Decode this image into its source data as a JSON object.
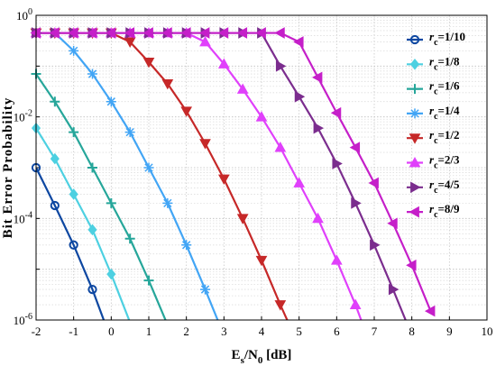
{
  "chart_data": {
    "type": "line",
    "xlabel": "Es/N0 [dB]",
    "xlabel_parts": {
      "base1": "E",
      "sub1": "s",
      "mid": "/N",
      "sub2": "0",
      "unit": " [dB]"
    },
    "ylabel": "Bit Error Probability",
    "xlim": [
      -2,
      10
    ],
    "ylim": [
      1e-06,
      1
    ],
    "yscale": "log",
    "grid": true,
    "legend_position": "right",
    "x_ticks": [
      "-2",
      "-1",
      "0",
      "1",
      "2",
      "3",
      "4",
      "5",
      "6",
      "7",
      "8",
      "9",
      "10"
    ],
    "y_ticks": [
      {
        "base": "10",
        "exp": "0"
      },
      {
        "base": "10",
        "exp": "-2"
      },
      {
        "base": "10",
        "exp": "-4"
      },
      {
        "base": "10",
        "exp": "-6"
      }
    ],
    "series": [
      {
        "name": "r_c=1/10",
        "label_sub": "c",
        "label_rest": "=1/10",
        "color": "#0d47a1",
        "marker": "circle",
        "x": [
          -2,
          -1.5,
          -1,
          -0.5,
          0
        ],
        "y": [
          0.001,
          0.00018,
          3e-05,
          4e-06,
          4e-07
        ]
      },
      {
        "name": "r_c=1/8",
        "label_sub": "c",
        "label_rest": "=1/8",
        "color": "#4dd0e1",
        "marker": "diamond",
        "x": [
          -2,
          -1.5,
          -1,
          -0.5,
          0,
          0.5
        ],
        "y": [
          0.006,
          0.0015,
          0.0003,
          6e-05,
          8e-06,
          9e-07
        ]
      },
      {
        "name": "r_c=1/6",
        "label_sub": "c",
        "label_rest": "=1/6",
        "color": "#26a69a",
        "marker": "plus",
        "x": [
          -2,
          -1.5,
          -1,
          -0.5,
          0,
          0.5,
          1,
          1.5
        ],
        "y": [
          0.07,
          0.02,
          0.005,
          0.001,
          0.0002,
          4e-05,
          6e-06,
          8e-07
        ]
      },
      {
        "name": "r_c=1/4",
        "label_sub": "c",
        "label_rest": "=1/4",
        "color": "#42a5f5",
        "marker": "star",
        "x": [
          -2,
          -1.5,
          -1,
          -0.5,
          0,
          0.5,
          1,
          1.5,
          2,
          2.5,
          3
        ],
        "y": [
          0.45,
          0.45,
          0.2,
          0.07,
          0.02,
          0.005,
          0.001,
          0.0002,
          3e-05,
          4e-06,
          5e-07
        ]
      },
      {
        "name": "r_c=1/2",
        "label_sub": "c",
        "label_rest": "=1/2",
        "color": "#c62828",
        "marker": "triangle-down",
        "x": [
          -2,
          -1.5,
          -1,
          -0.5,
          0,
          0.5,
          1,
          1.5,
          2,
          2.5,
          3,
          3.5,
          4,
          4.5,
          5
        ],
        "y": [
          0.45,
          0.45,
          0.45,
          0.45,
          0.45,
          0.3,
          0.12,
          0.045,
          0.013,
          0.003,
          0.0006,
          0.0001,
          1.5e-05,
          2e-06,
          3e-07
        ]
      },
      {
        "name": "r_c=2/3",
        "label_sub": "c",
        "label_rest": "=2/3",
        "color": "#e040fb",
        "marker": "triangle-up",
        "x": [
          -2,
          -1.5,
          -1,
          -0.5,
          0,
          0.5,
          1,
          1.5,
          2,
          2.5,
          3,
          3.5,
          4,
          4.5,
          5,
          5.5,
          6,
          6.5,
          7
        ],
        "y": [
          0.45,
          0.45,
          0.45,
          0.45,
          0.45,
          0.45,
          0.45,
          0.45,
          0.45,
          0.3,
          0.11,
          0.035,
          0.01,
          0.0025,
          0.0005,
          0.0001,
          1.5e-05,
          2e-06,
          2e-07
        ]
      },
      {
        "name": "r_c=4/5",
        "label_sub": "c",
        "label_rest": "=4/5",
        "color": "#7b2d8e",
        "marker": "triangle-right",
        "x": [
          -2,
          -1.5,
          -1,
          -0.5,
          0,
          0.5,
          1,
          1.5,
          2,
          2.5,
          3,
          3.5,
          4,
          4.5,
          5,
          5.5,
          6,
          6.5,
          7,
          7.5,
          8
        ],
        "y": [
          0.45,
          0.45,
          0.45,
          0.45,
          0.45,
          0.45,
          0.45,
          0.45,
          0.45,
          0.45,
          0.45,
          0.45,
          0.45,
          0.1,
          0.025,
          0.006,
          0.0012,
          0.0002,
          3e-05,
          4e-06,
          5e-07
        ]
      },
      {
        "name": "r_c=8/9",
        "label_sub": "c",
        "label_rest": "=8/9",
        "color": "#c51fc9",
        "marker": "triangle-left",
        "x": [
          -2,
          -1.5,
          -1,
          -0.5,
          0,
          0.5,
          1,
          1.5,
          2,
          2.5,
          3,
          3.5,
          4,
          4.5,
          5,
          5.5,
          6,
          6.5,
          7,
          7.5,
          8,
          8.5
        ],
        "y": [
          0.45,
          0.45,
          0.45,
          0.45,
          0.45,
          0.45,
          0.45,
          0.45,
          0.45,
          0.45,
          0.45,
          0.45,
          0.45,
          0.45,
          0.3,
          0.06,
          0.012,
          0.0025,
          0.0005,
          8e-05,
          1.2e-05,
          1.5e-06
        ]
      }
    ]
  }
}
